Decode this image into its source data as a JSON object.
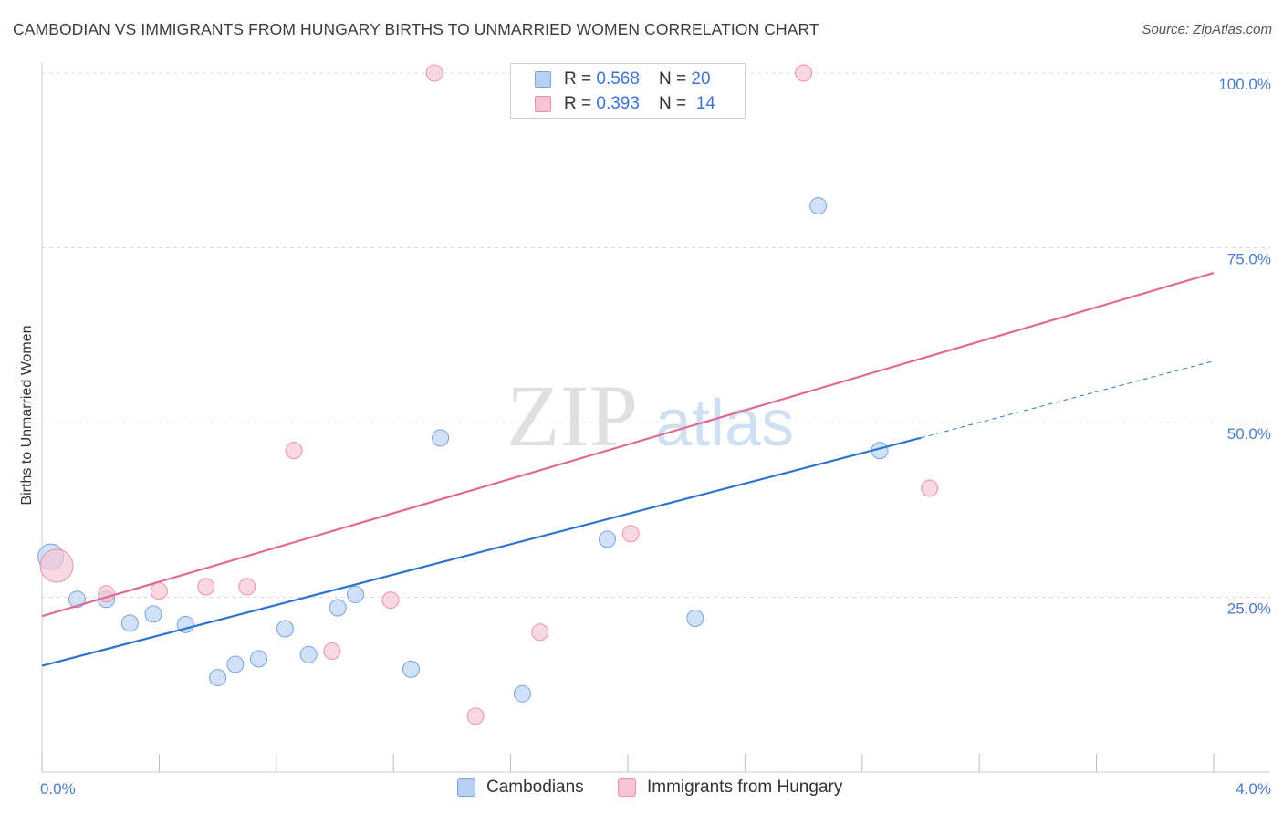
{
  "header": {
    "title": "CAMBODIAN VS IMMIGRANTS FROM HUNGARY BIRTHS TO UNMARRIED WOMEN CORRELATION CHART",
    "source": "Source: ZipAtlas.com"
  },
  "watermark": {
    "zip": "ZIP",
    "atlas": "atlas"
  },
  "legend_top": {
    "series1": {
      "r_label": "R = ",
      "r_value": "0.568",
      "n_label": "N = ",
      "n_value": "20"
    },
    "series2": {
      "r_label": "R = ",
      "r_value": "0.393",
      "n_label": "N = ",
      "n_value": "14"
    }
  },
  "legend_bottom": {
    "series1": "Cambodians",
    "series2": "Immigrants from Hungary"
  },
  "colors": {
    "series1_fill": "#b8d1f3",
    "series1_stroke": "#7aa3dd",
    "series1_line": "#2f74cf",
    "series2_fill": "#f8c3d3",
    "series2_stroke": "#e993ae",
    "series2_line": "#e06a93",
    "grid": "#dddddd",
    "tick_text": "#4a7cc7"
  },
  "chart_data": {
    "type": "scatter",
    "title": "CAMBODIAN VS IMMIGRANTS FROM HUNGARY BIRTHS TO UNMARRIED WOMEN CORRELATION CHART",
    "xlabel": "",
    "ylabel": "Births to Unmarried Women",
    "xlim": [
      0,
      4
    ],
    "ylim": [
      0,
      100
    ],
    "x_tick_labels": [
      "0.0%",
      "4.0%"
    ],
    "y_ticks": [
      25,
      50,
      75,
      100
    ],
    "y_tick_labels": [
      "25.0%",
      "50.0%",
      "75.0%",
      "100.0%"
    ],
    "grid": true,
    "series": [
      {
        "name": "Cambodians",
        "R": 0.568,
        "N": 20,
        "points": [
          {
            "x": 0.03,
            "y": 30.8,
            "size": 14
          },
          {
            "x": 0.12,
            "y": 24.7,
            "size": 9
          },
          {
            "x": 0.22,
            "y": 24.7,
            "size": 9
          },
          {
            "x": 0.3,
            "y": 21.3,
            "size": 9
          },
          {
            "x": 0.38,
            "y": 22.6,
            "size": 9
          },
          {
            "x": 0.49,
            "y": 21.1,
            "size": 9
          },
          {
            "x": 0.6,
            "y": 13.5,
            "size": 9
          },
          {
            "x": 0.66,
            "y": 15.4,
            "size": 9
          },
          {
            "x": 0.74,
            "y": 16.2,
            "size": 9
          },
          {
            "x": 0.83,
            "y": 20.5,
            "size": 9
          },
          {
            "x": 0.91,
            "y": 16.8,
            "size": 9
          },
          {
            "x": 1.01,
            "y": 23.5,
            "size": 9
          },
          {
            "x": 1.07,
            "y": 25.4,
            "size": 9
          },
          {
            "x": 1.26,
            "y": 14.7,
            "size": 9
          },
          {
            "x": 1.36,
            "y": 47.8,
            "size": 9
          },
          {
            "x": 1.64,
            "y": 11.2,
            "size": 9
          },
          {
            "x": 1.93,
            "y": 33.3,
            "size": 9
          },
          {
            "x": 2.23,
            "y": 22.0,
            "size": 9
          },
          {
            "x": 2.65,
            "y": 81.0,
            "size": 9
          },
          {
            "x": 2.86,
            "y": 46.0,
            "size": 9
          }
        ],
        "trend": {
          "x": [
            0,
            3.0
          ],
          "y": [
            15.2,
            47.8
          ],
          "dashed_extension": {
            "x": [
              3.0,
              4.0
            ],
            "y": [
              47.8,
              58.8
            ]
          }
        }
      },
      {
        "name": "Immigrants from Hungary",
        "R": 0.393,
        "N": 14,
        "points": [
          {
            "x": 0.05,
            "y": 29.5,
            "size": 18
          },
          {
            "x": 0.22,
            "y": 25.5,
            "size": 9
          },
          {
            "x": 0.4,
            "y": 25.9,
            "size": 9
          },
          {
            "x": 0.56,
            "y": 26.5,
            "size": 9
          },
          {
            "x": 0.7,
            "y": 26.5,
            "size": 9
          },
          {
            "x": 0.86,
            "y": 46.0,
            "size": 9
          },
          {
            "x": 0.99,
            "y": 17.3,
            "size": 9
          },
          {
            "x": 1.19,
            "y": 24.6,
            "size": 9
          },
          {
            "x": 1.34,
            "y": 100.0,
            "size": 9
          },
          {
            "x": 1.48,
            "y": 8.0,
            "size": 9
          },
          {
            "x": 1.7,
            "y": 20.0,
            "size": 9
          },
          {
            "x": 2.01,
            "y": 34.1,
            "size": 9
          },
          {
            "x": 2.6,
            "y": 100.0,
            "size": 9
          },
          {
            "x": 3.03,
            "y": 40.6,
            "size": 9
          }
        ],
        "trend": {
          "x": [
            0,
            4.0
          ],
          "y": [
            22.3,
            71.4
          ]
        }
      }
    ]
  }
}
